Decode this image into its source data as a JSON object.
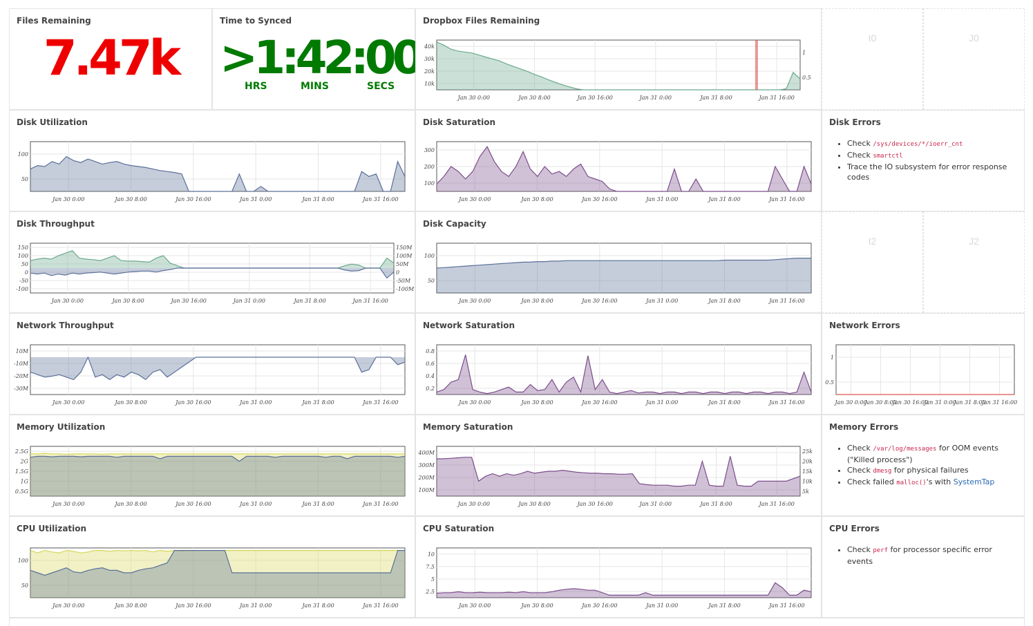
{
  "files_remaining": {
    "title": "Files Remaining",
    "value": "7.47k",
    "color": "#ef0000"
  },
  "time_to_synced": {
    "title": "Time to Synced",
    "value": ">1:42:00",
    "units": [
      "HRS",
      "MINS",
      "SECS"
    ],
    "color": "#007a00"
  },
  "placeholders": [
    "I0",
    "J0",
    "I2",
    "J2"
  ],
  "x_ticks": [
    "Jan 30 0:00",
    "Jan 30 8:00",
    "Jan 30 16:00",
    "Jan 31 0:00",
    "Jan 31 8:00",
    "Jan 31 16:00"
  ],
  "colors": {
    "green": "#6aa88c",
    "blue": "#5a6f99",
    "purple": "#7b4d8c",
    "yellow": "#d6d65a",
    "red": "#d9534f",
    "grid": "#e6e6e6"
  },
  "disk_errors": {
    "title": "Disk Errors",
    "items": [
      {
        "pre": "Check ",
        "code": "/sys/devices/*/ioerr_cnt",
        "post": ""
      },
      {
        "pre": "Check ",
        "code": "smartctl",
        "post": ""
      },
      {
        "pre": "Trace the IO subsystem for error response codes",
        "code": "",
        "post": ""
      }
    ]
  },
  "memory_errors": {
    "title": "Memory Errors",
    "items": [
      {
        "pre": "Check ",
        "code": "/var/log/messages",
        "post": " for OOM events (\"Killed process\")"
      },
      {
        "pre": "Check ",
        "code": "dmesg",
        "post": " for physical failures"
      },
      {
        "pre": "Check failed ",
        "code": "malloc()",
        "post": "'s with ",
        "link": "SystemTap"
      }
    ]
  },
  "cpu_errors": {
    "title": "CPU Errors",
    "items": [
      {
        "pre": "Check ",
        "code": "perf",
        "post": " for processor specific error events"
      }
    ]
  },
  "chart_data": [
    {
      "id": "dropbox",
      "title": "Dropbox Files Remaining",
      "type": "area",
      "yticks": [
        "40k",
        "30k",
        "20k",
        "10k"
      ],
      "y2ticks": [
        "1",
        "0.5"
      ],
      "series": [
        {
          "color": "green",
          "values": [
            0.96,
            0.9,
            0.82,
            0.78,
            0.76,
            0.74,
            0.7,
            0.66,
            0.62,
            0.58,
            0.52,
            0.47,
            0.42,
            0.37,
            0.31,
            0.26,
            0.2,
            0.15,
            0.1,
            0.06,
            0.02,
            0,
            0,
            0,
            0,
            0,
            0,
            0,
            0,
            0,
            0,
            0,
            0,
            0,
            0,
            0,
            0,
            0,
            0,
            0,
            0,
            0,
            0,
            0,
            0,
            0,
            0,
            0,
            0,
            0,
            0.02,
            0.35,
            0.22
          ]
        }
      ],
      "marker": 0.88
    },
    {
      "id": "disk_util",
      "title": "Disk Utilization",
      "type": "area",
      "yticks": [
        "100",
        "50"
      ],
      "y2ticks": [],
      "series": [
        {
          "color": "blue",
          "values": [
            0.45,
            0.52,
            0.5,
            0.6,
            0.55,
            0.7,
            0.62,
            0.58,
            0.65,
            0.6,
            0.55,
            0.58,
            0.6,
            0.55,
            0.52,
            0.5,
            0.48,
            0.45,
            0.42,
            0.4,
            0.38,
            0.35,
            0,
            0,
            0,
            0,
            0,
            0,
            0,
            0.35,
            0,
            0,
            0.1,
            0,
            0,
            0,
            0,
            0,
            0,
            0,
            0,
            0,
            0,
            0,
            0,
            0,
            0.4,
            0.3,
            0.35,
            0,
            0,
            0.6,
            0.3
          ]
        }
      ]
    },
    {
      "id": "disk_sat",
      "title": "Disk Saturation",
      "type": "area",
      "yticks": [
        "300",
        "200",
        "100"
      ],
      "y2ticks": [],
      "series": [
        {
          "color": "purple",
          "values": [
            0.15,
            0.3,
            0.5,
            0.4,
            0.25,
            0.4,
            0.7,
            0.9,
            0.6,
            0.4,
            0.3,
            0.5,
            0.8,
            0.45,
            0.3,
            0.5,
            0.35,
            0.4,
            0.3,
            0.45,
            0.55,
            0.3,
            0.25,
            0.2,
            0.05,
            0,
            0,
            0,
            0,
            0,
            0,
            0,
            0,
            0.45,
            0,
            0,
            0.25,
            0,
            0,
            0,
            0,
            0,
            0,
            0,
            0,
            0,
            0,
            0.5,
            0.25,
            0,
            0,
            0.5,
            0.15
          ]
        }
      ]
    },
    {
      "id": "disk_thru",
      "title": "Disk Throughput",
      "type": "area",
      "center": true,
      "yticks": [
        "150",
        "100",
        "50",
        "0",
        "-50",
        "-100"
      ],
      "y2ticks": [
        "150M",
        "100M",
        "50M",
        "0",
        "-50M",
        "-100M"
      ],
      "series": [
        {
          "color": "green",
          "values": [
            0.15,
            0.18,
            0.2,
            0.18,
            0.25,
            0.3,
            0.35,
            0.2,
            0.18,
            0.17,
            0.15,
            0.2,
            0.25,
            0.15,
            0.14,
            0.14,
            0.13,
            0.12,
            0.2,
            0.25,
            0.1,
            0.05,
            0,
            0,
            0,
            0,
            0,
            0,
            0,
            0,
            0,
            0,
            0,
            0,
            0,
            0,
            0,
            0,
            0,
            0,
            0,
            0,
            0,
            0,
            0,
            0.05,
            0.08,
            0.06,
            0,
            0,
            0,
            0.2,
            0.1
          ]
        },
        {
          "color": "blue",
          "values": [
            -0.1,
            -0.12,
            -0.1,
            -0.15,
            -0.12,
            -0.14,
            -0.1,
            -0.12,
            -0.1,
            -0.09,
            -0.08,
            -0.1,
            -0.12,
            -0.1,
            -0.08,
            -0.07,
            -0.06,
            -0.06,
            -0.08,
            -0.05,
            -0.03,
            0,
            0,
            0,
            0,
            0,
            0,
            0,
            0,
            0,
            0,
            0,
            0,
            0,
            0,
            0,
            0,
            0,
            0,
            0,
            0,
            0,
            0,
            0,
            0,
            -0.04,
            -0.06,
            -0.05,
            0,
            0,
            0,
            -0.2,
            -0.08
          ]
        }
      ]
    },
    {
      "id": "disk_cap",
      "title": "Disk Capacity",
      "type": "area",
      "yticks": [
        "100",
        "50"
      ],
      "y2ticks": [],
      "series": [
        {
          "color": "blue",
          "values": [
            0.5,
            0.51,
            0.52,
            0.53,
            0.54,
            0.55,
            0.56,
            0.57,
            0.58,
            0.59,
            0.6,
            0.61,
            0.62,
            0.62,
            0.63,
            0.63,
            0.64,
            0.64,
            0.65,
            0.65,
            0.65,
            0.65,
            0.65,
            0.65,
            0.65,
            0.65,
            0.65,
            0.65,
            0.65,
            0.65,
            0.65,
            0.65,
            0.65,
            0.65,
            0.65,
            0.65,
            0.65,
            0.65,
            0.65,
            0.65,
            0.66,
            0.66,
            0.66,
            0.66,
            0.66,
            0.66,
            0.66,
            0.67,
            0.68,
            0.69,
            0.7,
            0.7,
            0.7
          ]
        }
      ]
    },
    {
      "id": "net_thru",
      "title": "Network Throughput",
      "type": "area",
      "top": true,
      "yticks": [
        "10M",
        "-10M",
        "-20M",
        "-30M"
      ],
      "y2ticks": [],
      "series": [
        {
          "color": "blue",
          "values": [
            -0.3,
            -0.35,
            -0.4,
            -0.38,
            -0.35,
            -0.4,
            -0.45,
            -0.3,
            0,
            -0.4,
            -0.35,
            -0.45,
            -0.35,
            -0.4,
            -0.3,
            -0.35,
            -0.45,
            -0.3,
            -0.25,
            -0.4,
            -0.3,
            -0.2,
            -0.1,
            0,
            0,
            0,
            0,
            0,
            0,
            0,
            0,
            0,
            0,
            0,
            0,
            0,
            0,
            0,
            0,
            0,
            0,
            0,
            0,
            0,
            0,
            0,
            -0.3,
            -0.25,
            0,
            0,
            0,
            -0.15,
            -0.1
          ]
        }
      ]
    },
    {
      "id": "net_sat",
      "title": "Network Saturation",
      "type": "area",
      "yticks": [
        "0.8",
        "0.6",
        "0.4",
        "0.2"
      ],
      "y2ticks": [],
      "series": [
        {
          "color": "purple",
          "values": [
            0.05,
            0.1,
            0.25,
            0.3,
            0.8,
            0.1,
            0.05,
            0.02,
            0.05,
            0.1,
            0.15,
            0.05,
            0.05,
            0.2,
            0.08,
            0.1,
            0.3,
            0.05,
            0.25,
            0.35,
            0.05,
            0.78,
            0.1,
            0.3,
            0.05,
            0.02,
            0.05,
            0.08,
            0.03,
            0.05,
            0.05,
            0.02,
            0.05,
            0.05,
            0.02,
            0.05,
            0.05,
            0.02,
            0.05,
            0.05,
            0.02,
            0.05,
            0.05,
            0.02,
            0.05,
            0.05,
            0.02,
            0.05,
            0.05,
            0.02,
            0.05,
            0.45,
            0.05
          ]
        }
      ]
    },
    {
      "id": "net_err",
      "title": "Network Errors",
      "type": "line",
      "yticks": [
        "1",
        "0.5"
      ],
      "y2ticks": [],
      "xticks": [
        "Jan 30 0:00",
        "Jan 30 8:00",
        "Jan 30 16:00",
        "Jan 31 0:00",
        "Jan 31 8:00",
        "Jan 31 16:00"
      ],
      "series": [
        {
          "color": "red",
          "values": [
            0,
            0,
            0,
            0,
            0,
            0,
            0,
            0,
            0,
            0
          ]
        }
      ]
    },
    {
      "id": "mem_util",
      "title": "Memory Utilization",
      "type": "area",
      "yticks": [
        "2.5G",
        "2G",
        "1.5G",
        "1G",
        "0.5G"
      ],
      "y2ticks": [],
      "series": [
        {
          "color": "yellow",
          "values": [
            0.85,
            0.85,
            0.86,
            0.85,
            0.85,
            0.84,
            0.85,
            0.85,
            0.85,
            0.85,
            0.84,
            0.85,
            0.85,
            0.85,
            0.85,
            0.85,
            0.85,
            0.85,
            0.85,
            0.85,
            0.85,
            0.85,
            0.85,
            0.85,
            0.85,
            0.85,
            0.85,
            0.85,
            0.85,
            0.85,
            0.85,
            0.85,
            0.85,
            0.85,
            0.85,
            0.85,
            0.85,
            0.85,
            0.85,
            0.85,
            0.85,
            0.85,
            0.85,
            0.85,
            0.85,
            0.85,
            0.85,
            0.85,
            0.85,
            0.85,
            0.85,
            0.85,
            0.85
          ]
        },
        {
          "color": "blue",
          "values": [
            0.78,
            0.8,
            0.8,
            0.79,
            0.8,
            0.8,
            0.8,
            0.79,
            0.8,
            0.8,
            0.8,
            0.8,
            0.78,
            0.8,
            0.8,
            0.8,
            0.8,
            0.8,
            0.75,
            0.8,
            0.8,
            0.8,
            0.8,
            0.8,
            0.8,
            0.8,
            0.8,
            0.8,
            0.8,
            0.7,
            0.8,
            0.8,
            0.8,
            0.8,
            0.78,
            0.8,
            0.8,
            0.8,
            0.8,
            0.8,
            0.8,
            0.78,
            0.8,
            0.8,
            0.75,
            0.8,
            0.8,
            0.8,
            0.8,
            0.8,
            0.8,
            0.78,
            0.8
          ]
        }
      ]
    },
    {
      "id": "mem_sat",
      "title": "Memory Saturation",
      "type": "area",
      "yticks": [
        "400M",
        "300M",
        "200M",
        "100M"
      ],
      "y2ticks": [
        "25k",
        "20k",
        "15k",
        "10k",
        "5k"
      ],
      "series": [
        {
          "color": "purple",
          "values": [
            0.75,
            0.75,
            0.76,
            0.77,
            0.78,
            0.78,
            0.3,
            0.4,
            0.45,
            0.4,
            0.45,
            0.42,
            0.45,
            0.5,
            0.46,
            0.48,
            0.5,
            0.5,
            0.52,
            0.5,
            0.48,
            0.47,
            0.46,
            0.46,
            0.45,
            0.45,
            0.44,
            0.44,
            0.45,
            0.25,
            0.23,
            0.22,
            0.22,
            0.22,
            0.2,
            0.2,
            0.22,
            0.22,
            0.7,
            0.22,
            0.2,
            0.2,
            0.8,
            0.22,
            0.2,
            0.2,
            0.3,
            0.3,
            0.3,
            0.3,
            0.3,
            0.35,
            0.4
          ]
        }
      ]
    },
    {
      "id": "cpu_util",
      "title": "CPU Utilization",
      "type": "area",
      "yticks": [
        "100",
        "50"
      ],
      "y2ticks": [],
      "series": [
        {
          "color": "yellow",
          "values": [
            0.95,
            0.9,
            0.95,
            0.92,
            0.9,
            0.95,
            0.93,
            0.9,
            0.92,
            0.95,
            0.95,
            0.93,
            0.95,
            0.94,
            0.95,
            0.94,
            0.95,
            0.92,
            0.95,
            0.93,
            0.95,
            0.94,
            0.95,
            0.95,
            0.95,
            0.95,
            0.95,
            0.95,
            0.95,
            0.95,
            0.95,
            0.95,
            0.95,
            0.95,
            0.95,
            0.95,
            0.95,
            0.95,
            0.95,
            0.95,
            0.95,
            0.95,
            0.95,
            0.95,
            0.95,
            0.95,
            0.95,
            0.95,
            0.95,
            0.95,
            0.95,
            0.95,
            0.95
          ]
        },
        {
          "color": "blue",
          "values": [
            0.55,
            0.5,
            0.45,
            0.5,
            0.55,
            0.6,
            0.52,
            0.5,
            0.55,
            0.58,
            0.6,
            0.55,
            0.55,
            0.5,
            0.5,
            0.55,
            0.58,
            0.6,
            0.65,
            0.7,
            0.95,
            0.95,
            0.95,
            0.95,
            0.95,
            0.95,
            0.95,
            0.95,
            0.5,
            0.5,
            0.5,
            0.5,
            0.5,
            0.5,
            0.5,
            0.5,
            0.5,
            0.5,
            0.5,
            0.5,
            0.5,
            0.5,
            0.5,
            0.5,
            0.5,
            0.5,
            0.5,
            0.5,
            0.5,
            0.5,
            0.5,
            0.95,
            0.95
          ]
        }
      ]
    },
    {
      "id": "cpu_sat",
      "title": "CPU Saturation",
      "type": "area",
      "yticks": [
        "10",
        "7.5",
        "5",
        "2.5"
      ],
      "y2ticks": [],
      "series": [
        {
          "color": "purple",
          "values": [
            0.09,
            0.1,
            0.1,
            0.12,
            0.1,
            0.1,
            0.11,
            0.1,
            0.1,
            0.1,
            0.11,
            0.1,
            0.12,
            0.1,
            0.1,
            0.1,
            0.12,
            0.15,
            0.17,
            0.18,
            0.17,
            0.15,
            0.15,
            0.1,
            0.05,
            0.05,
            0.05,
            0.05,
            0.05,
            0.1,
            0.05,
            0.05,
            0.05,
            0.05,
            0.05,
            0.05,
            0.05,
            0.05,
            0.05,
            0.05,
            0.05,
            0.05,
            0.05,
            0.05,
            0.05,
            0.05,
            0.05,
            0.3,
            0.2,
            0.05,
            0.05,
            0.15,
            0.12
          ]
        }
      ]
    }
  ]
}
